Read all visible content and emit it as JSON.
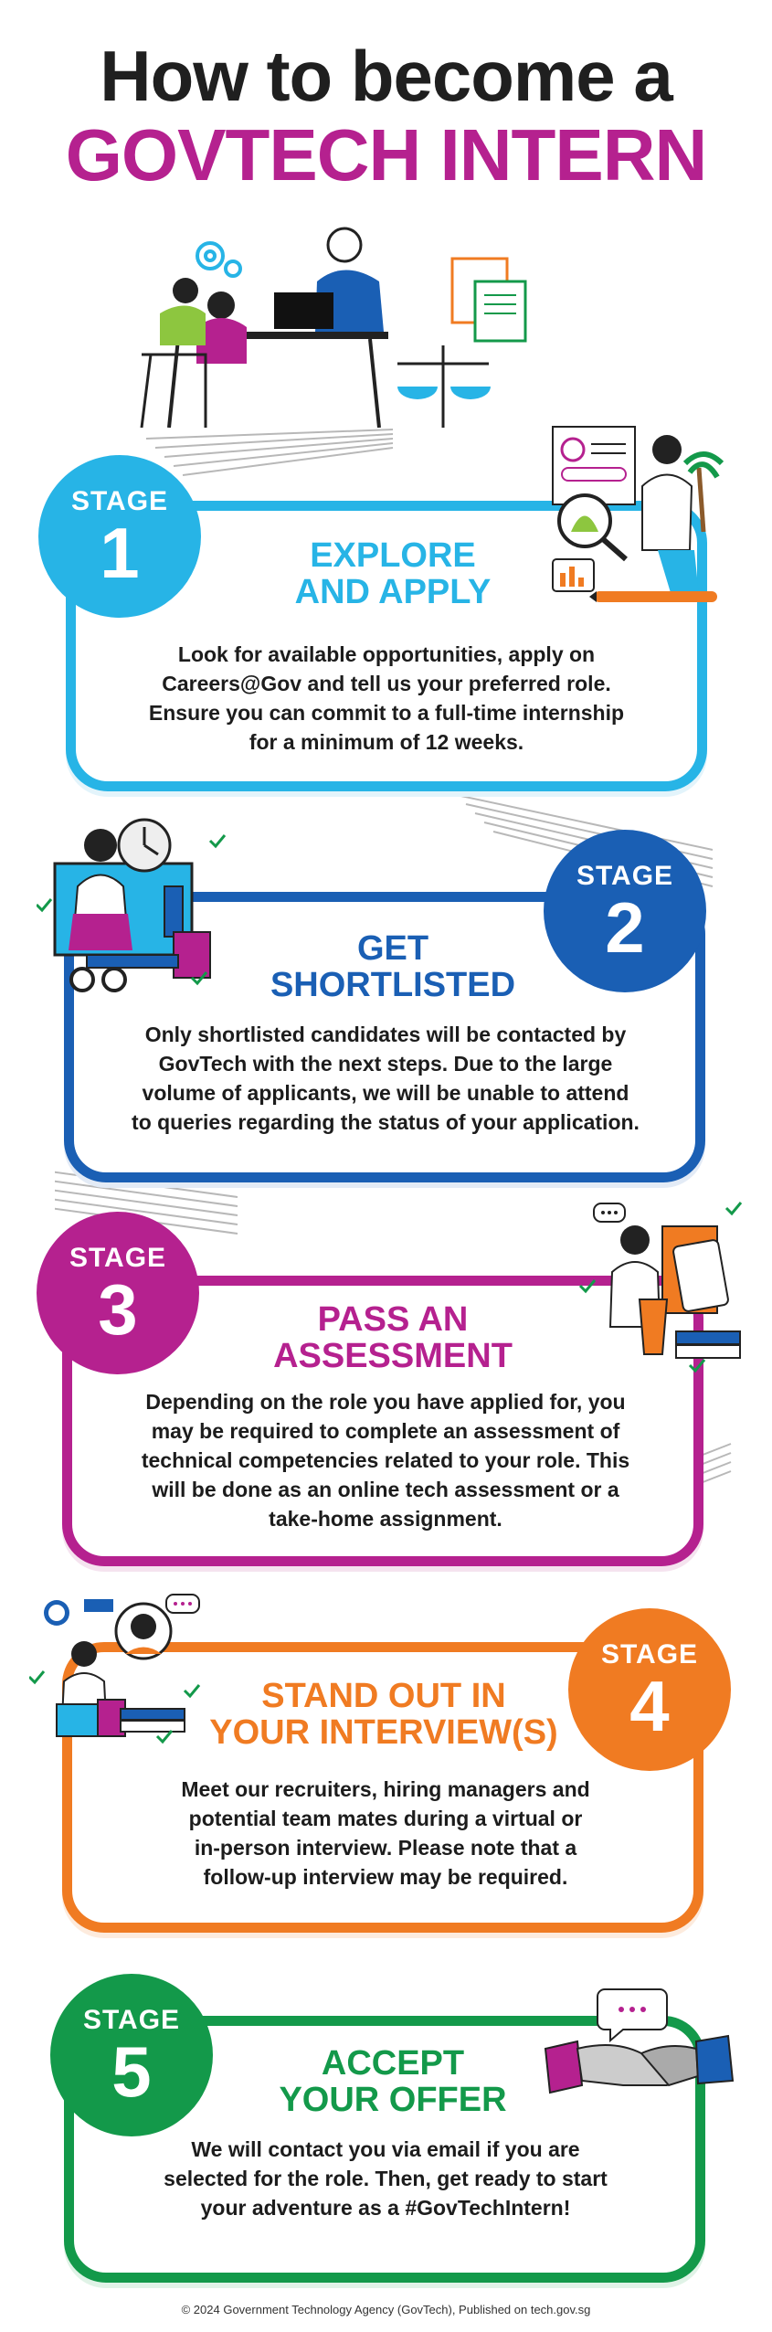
{
  "title": {
    "line1": "How to become a",
    "line2": "GOVTECH INTERN"
  },
  "stages": [
    {
      "word": "STAGE",
      "number": "1",
      "title_line1": "EXPLORE",
      "title_line2": "AND APPLY",
      "body": [
        "Look for available opportunities, apply on",
        "Careers@Gov and tell us your preferred role.",
        "Ensure you can commit to a full-time internship",
        "for a minimum of 12 weeks."
      ],
      "color": "#27b4e6"
    },
    {
      "word": "STAGE",
      "number": "2",
      "title_line1": "GET",
      "title_line2": "SHORTLISTED",
      "body": [
        "Only shortlisted candidates will be contacted by",
        "GovTech with the next steps. Due to the large",
        "volume of applicants, we will be unable to attend",
        "to queries regarding the status of your application."
      ],
      "color": "#1a5fb4"
    },
    {
      "word": "STAGE",
      "number": "3",
      "title_line1": "PASS AN",
      "title_line2": "ASSESSMENT",
      "body": [
        "Depending on the role you have applied for, you",
        "may be required to complete an assessment of",
        "technical competencies related to your role. This",
        "will be done as an online tech assessment or a",
        "take-home assignment."
      ],
      "color": "#b5218f"
    },
    {
      "word": "STAGE",
      "number": "4",
      "title_line1": "STAND OUT IN",
      "title_line2": "YOUR INTERVIEW(S)",
      "body": [
        "Meet our recruiters, hiring managers and",
        "potential team mates during a virtual or",
        "in-person interview. Please note that a",
        "follow-up interview may be required."
      ],
      "color": "#f07b22"
    },
    {
      "word": "STAGE",
      "number": "5",
      "title_line1": "ACCEPT",
      "title_line2": "YOUR OFFER",
      "body": [
        "We will contact you via email if you are",
        "selected for the role. Then, get ready to start",
        "your adventure as a #GovTechIntern!"
      ],
      "color": "#13994a"
    }
  ],
  "footer": "© 2024 Government Technology Agency (GovTech), Published on tech.gov.sg"
}
